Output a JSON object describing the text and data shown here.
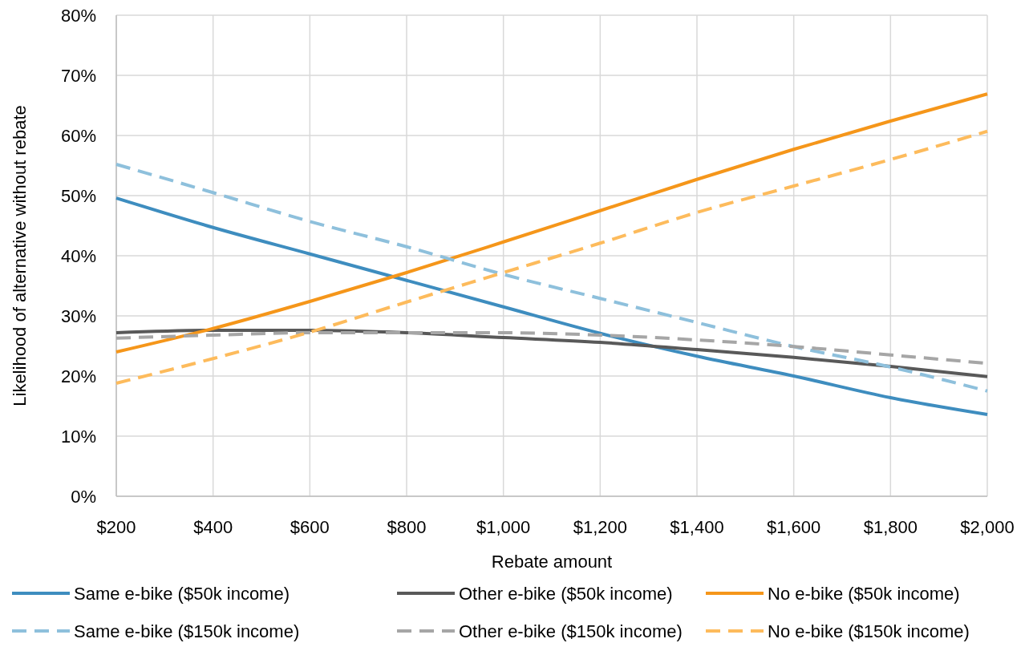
{
  "chart_data": {
    "type": "line",
    "xlabel": "Rebate amount",
    "ylabel": "Likelihood of alternative without rebate",
    "x": [
      200,
      400,
      600,
      800,
      1000,
      1200,
      1400,
      1600,
      1800,
      2000
    ],
    "xlim": [
      200,
      2000
    ],
    "xticks": [
      {
        "value": 200,
        "label": "$200"
      },
      {
        "value": 400,
        "label": "$400"
      },
      {
        "value": 600,
        "label": "$600"
      },
      {
        "value": 800,
        "label": "$800"
      },
      {
        "value": 1000,
        "label": "$1,000"
      },
      {
        "value": 1200,
        "label": "$1,200"
      },
      {
        "value": 1400,
        "label": "$1,400"
      },
      {
        "value": 1600,
        "label": "$1,600"
      },
      {
        "value": 1800,
        "label": "$1,800"
      },
      {
        "value": 2000,
        "label": "$2,000"
      }
    ],
    "ylim": [
      0,
      80
    ],
    "yticks": [
      {
        "value": 0,
        "label": "0%"
      },
      {
        "value": 10,
        "label": "10%"
      },
      {
        "value": 20,
        "label": "20%"
      },
      {
        "value": 30,
        "label": "30%"
      },
      {
        "value": 40,
        "label": "40%"
      },
      {
        "value": 50,
        "label": "50%"
      },
      {
        "value": 60,
        "label": "60%"
      },
      {
        "value": 70,
        "label": "70%"
      },
      {
        "value": 80,
        "label": "80%"
      }
    ],
    "grid": true,
    "legend": "bottom",
    "marker": "none",
    "series": [
      {
        "name": "Same e-bike ($50k income)",
        "color": "#3e8dbf",
        "line_style": "solid",
        "values": [
          49.6,
          44.7,
          40.3,
          35.9,
          31.5,
          27.1,
          23.3,
          20.0,
          16.4,
          13.6
        ]
      },
      {
        "name": "Other e-bike ($50k income)",
        "color": "#595959",
        "line_style": "solid",
        "values": [
          27.2,
          27.6,
          27.6,
          27.2,
          26.4,
          25.6,
          24.4,
          23.1,
          21.6,
          19.9
        ]
      },
      {
        "name": "No e-bike ($50k income)",
        "color": "#f5961a",
        "line_style": "solid",
        "values": [
          24.0,
          27.9,
          32.4,
          37.2,
          42.3,
          47.5,
          52.7,
          57.7,
          62.4,
          66.9
        ]
      },
      {
        "name": "Same e-bike ($150k income)",
        "color": "#8ec0dc",
        "line_style": "dashed",
        "values": [
          55.2,
          50.5,
          45.7,
          41.5,
          36.9,
          32.9,
          28.9,
          24.9,
          21.5,
          17.5
        ]
      },
      {
        "name": "Other e-bike ($150k income)",
        "color": "#a6a6a6",
        "line_style": "dashed",
        "values": [
          26.3,
          26.8,
          27.2,
          27.2,
          27.2,
          26.8,
          26.0,
          24.9,
          23.5,
          22.1
        ]
      },
      {
        "name": "No e-bike ($150k income)",
        "color": "#fdbb5c",
        "line_style": "dashed",
        "values": [
          18.8,
          22.9,
          27.3,
          32.3,
          37.2,
          42.1,
          47.2,
          51.6,
          56.0,
          60.7
        ]
      }
    ]
  }
}
